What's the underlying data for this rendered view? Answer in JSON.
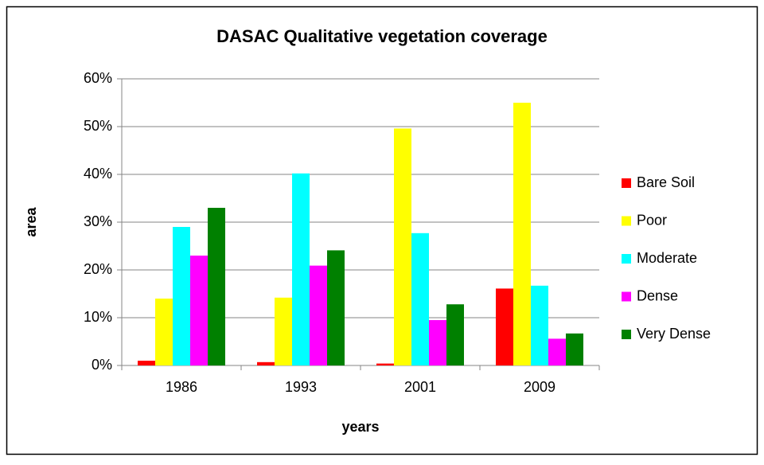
{
  "chart_data": {
    "type": "bar",
    "title": "DASAC Qualitative vegetation coverage",
    "x_label": "years",
    "y_label": "area",
    "categories": [
      "1986",
      "1993",
      "2001",
      "2009"
    ],
    "series": [
      {
        "name": "Bare Soil",
        "color": "#ff0000",
        "values": [
          1,
          0.7,
          0.4,
          16.1
        ]
      },
      {
        "name": "Poor",
        "color": "#ffff00",
        "values": [
          14,
          14.2,
          49.6,
          55
        ]
      },
      {
        "name": "Moderate",
        "color": "#00ffff",
        "values": [
          29,
          40.2,
          27.7,
          16.7
        ]
      },
      {
        "name": "Dense",
        "color": "#ff00ff",
        "values": [
          23,
          20.9,
          9.5,
          5.6
        ]
      },
      {
        "name": "Very Dense",
        "color": "#008000",
        "values": [
          33,
          24.1,
          12.8,
          6.7
        ]
      }
    ],
    "ylim": [
      0,
      60
    ],
    "yticks": [
      {
        "value": 0,
        "label": "0%"
      },
      {
        "value": 10,
        "label": "10%"
      },
      {
        "value": 20,
        "label": "20%"
      },
      {
        "value": 30,
        "label": "30%"
      },
      {
        "value": 40,
        "label": "40%"
      },
      {
        "value": 50,
        "label": "50%"
      },
      {
        "value": 60,
        "label": "60%"
      }
    ],
    "grid": true,
    "legend": "right"
  }
}
